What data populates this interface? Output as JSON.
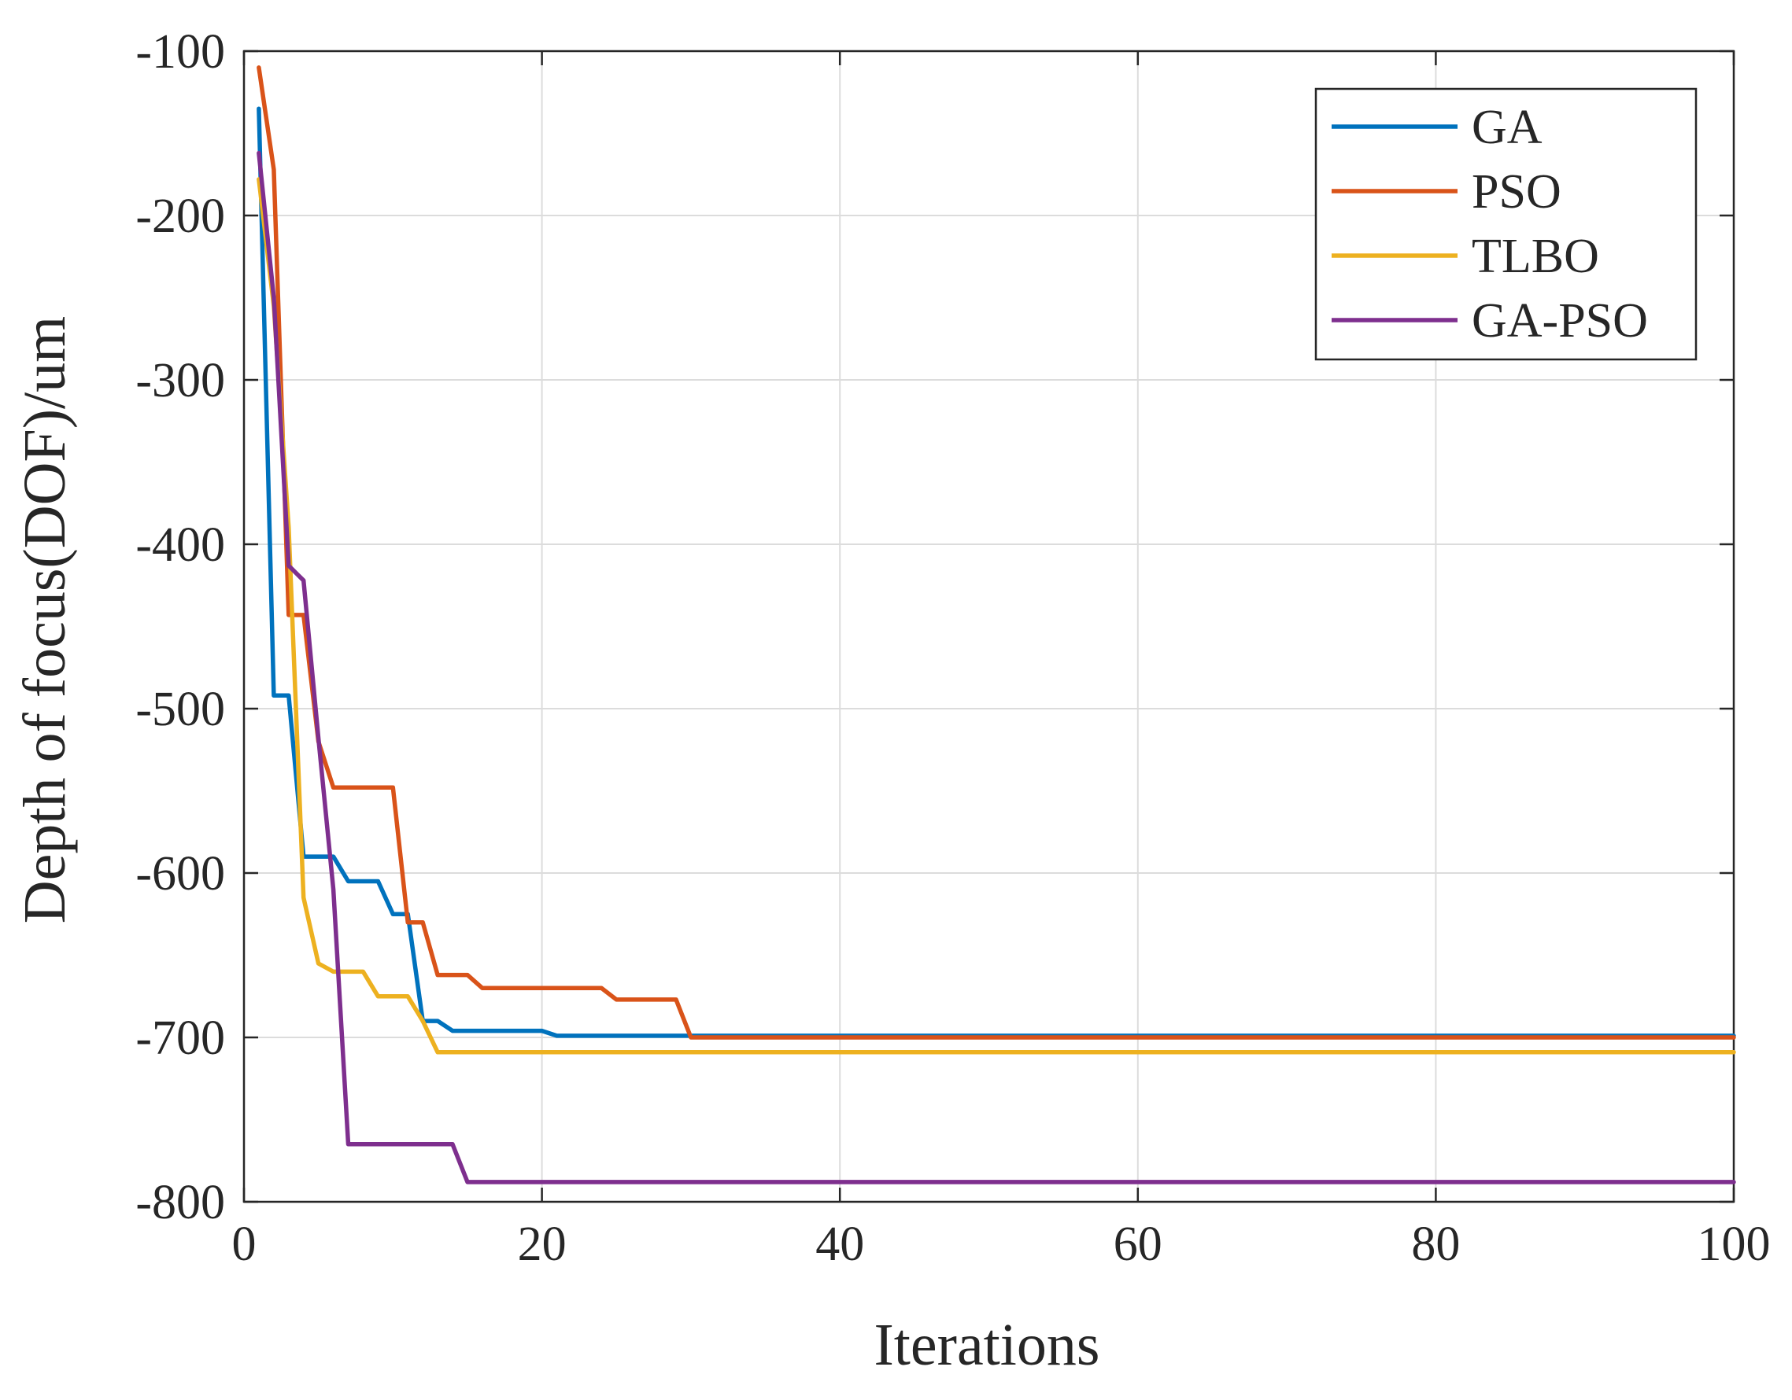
{
  "chart_data": {
    "type": "line",
    "title": "",
    "xlabel": "Iterations",
    "ylabel": "Depth of focus(DOF)/um",
    "xlim": [
      0,
      100
    ],
    "ylim": [
      -800,
      -100
    ],
    "xticks": [
      0,
      20,
      40,
      60,
      80,
      100
    ],
    "yticks": [
      -800,
      -700,
      -600,
      -500,
      -400,
      -300,
      -200,
      -100
    ],
    "xtick_labels": [
      "0",
      "20",
      "40",
      "60",
      "80",
      "100"
    ],
    "ytick_labels": [
      "-800",
      "-700",
      "-600",
      "-500",
      "-400",
      "-300",
      "-200",
      "-100"
    ],
    "grid": true,
    "legend_position": "top-right",
    "series": [
      {
        "name": "GA",
        "color": "#0072BD",
        "x": [
          1,
          2,
          3,
          4,
          5,
          6,
          7,
          8,
          9,
          10,
          11,
          12,
          13,
          14,
          15,
          20,
          21,
          22,
          30,
          100
        ],
        "y": [
          -135,
          -492,
          -492,
          -590,
          -590,
          -590,
          -605,
          -605,
          -605,
          -625,
          -625,
          -690,
          -690,
          -696,
          -696,
          -696,
          -699,
          -699,
          -699,
          -699
        ]
      },
      {
        "name": "PSO",
        "color": "#D95319",
        "x": [
          1,
          2,
          3,
          4,
          5,
          6,
          7,
          8,
          9,
          10,
          11,
          12,
          13,
          14,
          15,
          16,
          20,
          24,
          25,
          29,
          30,
          100
        ],
        "y": [
          -110,
          -172,
          -443,
          -443,
          -520,
          -548,
          -548,
          -548,
          -548,
          -548,
          -630,
          -630,
          -662,
          -662,
          -662,
          -670,
          -670,
          -670,
          -677,
          -677,
          -700,
          -700
        ]
      },
      {
        "name": "TLBO",
        "color": "#EDB120",
        "x": [
          1,
          2,
          3,
          4,
          5,
          6,
          7,
          8,
          9,
          10,
          11,
          12,
          13,
          14,
          100
        ],
        "y": [
          -178,
          -255,
          -390,
          -615,
          -655,
          -660,
          -660,
          -660,
          -675,
          -675,
          -675,
          -690,
          -709,
          -709,
          -709
        ]
      },
      {
        "name": "GA-PSO",
        "color": "#7E2F8E",
        "x": [
          1,
          2,
          3,
          4,
          5,
          6,
          7,
          8,
          10,
          12,
          14,
          15,
          100
        ],
        "y": [
          -162,
          -250,
          -413,
          -422,
          -518,
          -610,
          -765,
          -765,
          -765,
          -765,
          -765,
          -788,
          -788
        ]
      }
    ]
  }
}
